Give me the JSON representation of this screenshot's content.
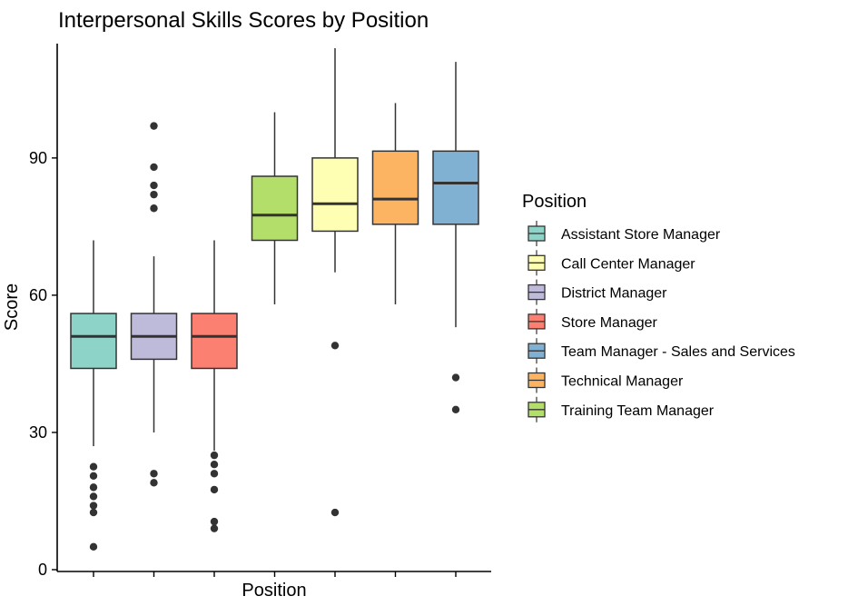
{
  "chart_data": {
    "type": "boxplot",
    "title": "Interpersonal Skills Scores by Position",
    "xlabel": "Position",
    "ylabel": "Score",
    "ylim": [
      0,
      115
    ],
    "yticks": [
      0,
      30,
      60,
      90
    ],
    "grid": false,
    "legend": {
      "title": "Position",
      "placement": "right",
      "entries": [
        {
          "label": "Assistant Store Manager",
          "color": "#8DD3C7"
        },
        {
          "label": "Call Center Manager",
          "color": "#FFFFB3"
        },
        {
          "label": "District Manager",
          "color": "#BEBADA"
        },
        {
          "label": "Store Manager",
          "color": "#FB8072"
        },
        {
          "label": "Team Manager - Sales and Services",
          "color": "#80B1D3"
        },
        {
          "label": "Technical Manager",
          "color": "#FDB462"
        },
        {
          "label": "Training Team Manager",
          "color": "#B3DE69"
        }
      ]
    },
    "boxes": [
      {
        "group": "Assistant Store Manager",
        "color": "#8DD3C7",
        "whisker_low": 27,
        "q1": 44,
        "median": 51,
        "q3": 56,
        "whisker_high": 72,
        "outliers": [
          5,
          12.5,
          14,
          16,
          18,
          20.5,
          22.5
        ]
      },
      {
        "group": "District Manager",
        "color": "#BEBADA",
        "whisker_low": 30,
        "q1": 46,
        "median": 51,
        "q3": 56,
        "whisker_high": 68.5,
        "outliers": [
          19,
          21,
          79,
          82,
          84,
          88,
          97
        ]
      },
      {
        "group": "Store Manager",
        "color": "#FB8072",
        "whisker_low": 26,
        "q1": 44,
        "median": 51,
        "q3": 56,
        "whisker_high": 72,
        "outliers": [
          9,
          10.5,
          17.5,
          21,
          23,
          25
        ]
      },
      {
        "group": "Training Team Manager",
        "color": "#B3DE69",
        "whisker_low": 58,
        "q1": 72,
        "median": 77.5,
        "q3": 86,
        "whisker_high": 100,
        "outliers": []
      },
      {
        "group": "Call Center Manager",
        "color": "#FFFFB3",
        "whisker_low": 65,
        "q1": 74,
        "median": 80,
        "q3": 90,
        "whisker_high": 114,
        "outliers": [
          12.5,
          49
        ]
      },
      {
        "group": "Technical Manager",
        "color": "#FDB462",
        "whisker_low": 58,
        "q1": 75.5,
        "median": 81,
        "q3": 91.5,
        "whisker_high": 102,
        "outliers": []
      },
      {
        "group": "Team Manager - Sales and Services",
        "color": "#80B1D3",
        "whisker_low": 53,
        "q1": 75.5,
        "median": 84.5,
        "q3": 91.5,
        "whisker_high": 111,
        "outliers": [
          35,
          42
        ]
      }
    ]
  }
}
